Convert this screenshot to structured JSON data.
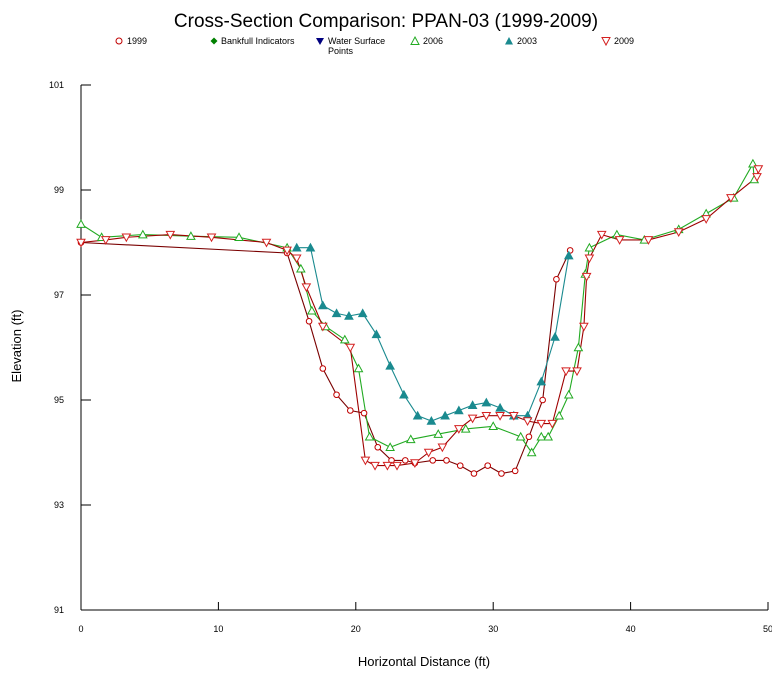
{
  "chart_data": {
    "type": "line",
    "title": "Cross-Section Comparison:  PPAN-03 (1999-2009)",
    "xlabel": "Horizontal Distance (ft)",
    "ylabel": "Elevation (ft)",
    "xlim": [
      0,
      50
    ],
    "ylim": [
      91,
      101
    ],
    "xticks": [
      "0",
      "10",
      "20",
      "30",
      "40",
      "50"
    ],
    "yticks": [
      "91",
      "93",
      "95",
      "97",
      "99",
      "101"
    ],
    "grid": false,
    "legend_position": "top",
    "legend": [
      {
        "name": "1999",
        "color": "#c00000",
        "marker": "circle-open"
      },
      {
        "name": "Bankfull Indicators",
        "color": "#008000",
        "marker": "diamond-filled"
      },
      {
        "name": "Water Surface Points",
        "color": "#00007f",
        "marker": "triangle-down-filled"
      },
      {
        "name": "2006",
        "color": "#22aa22",
        "marker": "triangle-up-open"
      },
      {
        "name": "2003",
        "color": "#1a8a8f",
        "marker": "triangle-up-filled"
      },
      {
        "name": "2009",
        "color": "#d42020",
        "marker": "triangle-down-open"
      }
    ],
    "series": [
      {
        "name": "1999",
        "color": "#c00000",
        "line_color": "#7a0000",
        "marker": "circle-open",
        "x": [
          0,
          15.0,
          16.6,
          17.6,
          18.6,
          19.6,
          20.6,
          21.6,
          22.6,
          23.6,
          24.3,
          25.6,
          26.6,
          27.6,
          28.6,
          29.6,
          30.6,
          31.6,
          32.6,
          33.6,
          34.6,
          35.6
        ],
        "y": [
          98.0,
          97.8,
          96.5,
          95.6,
          95.1,
          94.8,
          94.75,
          94.1,
          93.85,
          93.85,
          93.8,
          93.85,
          93.85,
          93.75,
          93.6,
          93.75,
          93.6,
          93.65,
          94.3,
          95.0,
          97.3,
          97.85
        ]
      },
      {
        "name": "2003",
        "color": "#1a8a8f",
        "line_color": "#1a8a8f",
        "marker": "triangle-up-filled",
        "x": [
          15.7,
          16.7,
          17.6,
          18.6,
          19.5,
          20.5,
          21.5,
          22.5,
          23.5,
          24.5,
          25.5,
          26.5,
          27.5,
          28.5,
          29.5,
          30.5,
          31.5,
          32.5,
          33.5,
          34.5,
          35.5
        ],
        "y": [
          97.9,
          97.9,
          96.8,
          96.65,
          96.6,
          96.65,
          96.25,
          95.65,
          95.1,
          94.7,
          94.6,
          94.7,
          94.8,
          94.9,
          94.95,
          94.85,
          94.7,
          94.7,
          95.35,
          96.2,
          97.75
        ]
      },
      {
        "name": "2006",
        "color": "#22aa22",
        "line_color": "#22aa22",
        "marker": "triangle-up-open",
        "x": [
          0,
          1.5,
          4.5,
          8.0,
          11.5,
          15.0,
          16.0,
          16.8,
          17.8,
          19.2,
          20.2,
          21.0,
          22.5,
          24.0,
          26.0,
          28.0,
          30.0,
          32.0,
          32.8,
          33.5,
          34.0,
          34.8,
          35.5,
          36.2,
          36.7,
          37.0,
          39.0,
          41.0,
          43.5,
          45.5,
          47.5,
          48.9,
          49.0
        ],
        "y": [
          98.35,
          98.1,
          98.15,
          98.12,
          98.1,
          97.9,
          97.5,
          96.7,
          96.4,
          96.15,
          95.6,
          94.3,
          94.1,
          94.25,
          94.35,
          94.45,
          94.5,
          94.3,
          94.0,
          94.3,
          94.3,
          94.7,
          95.1,
          96.0,
          97.4,
          97.9,
          98.15,
          98.05,
          98.25,
          98.55,
          98.85,
          99.5,
          99.2
        ]
      },
      {
        "name": "2009",
        "color": "#d42020",
        "line_color": "#9e0000",
        "marker": "triangle-down-open",
        "x": [
          0,
          1.8,
          3.3,
          6.5,
          9.5,
          13.5,
          15.0,
          15.7,
          16.4,
          17.6,
          19.6,
          20.7,
          21.4,
          22.3,
          23.0,
          24.3,
          25.3,
          26.3,
          27.5,
          28.5,
          29.5,
          30.5,
          31.5,
          32.5,
          33.5,
          34.3,
          35.3,
          36.1,
          36.6,
          36.8,
          37.0,
          37.9,
          39.2,
          41.3,
          43.5,
          45.5,
          47.3,
          49.2,
          49.3
        ],
        "y": [
          98.0,
          98.05,
          98.1,
          98.15,
          98.1,
          98.0,
          97.85,
          97.7,
          97.15,
          96.4,
          96.0,
          93.85,
          93.75,
          93.75,
          93.75,
          93.8,
          94.0,
          94.1,
          94.45,
          94.65,
          94.7,
          94.7,
          94.7,
          94.6,
          94.55,
          94.55,
          95.55,
          95.55,
          96.4,
          97.35,
          97.7,
          98.15,
          98.05,
          98.05,
          98.2,
          98.45,
          98.85,
          99.25,
          99.4
        ]
      }
    ]
  }
}
